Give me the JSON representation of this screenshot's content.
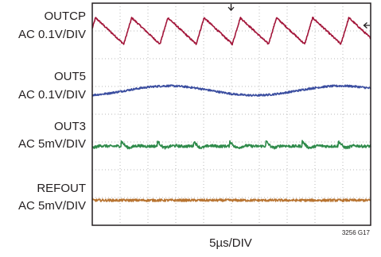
{
  "chart_data": {
    "type": "line",
    "title": "",
    "xlabel": "5µs/DIV",
    "figure_id": "3256 G17",
    "grid": {
      "divisions_x": 10,
      "divisions_y": 8,
      "style": "dotted"
    },
    "time_per_div_us": 5,
    "series": [
      {
        "name": "OUTCP",
        "scale": "AC 0.1V/DIV",
        "color": "#a3163a",
        "shape": "sawtooth",
        "period_div": 1.3,
        "amplitude_div": 0.95,
        "noise_div": 0.03
      },
      {
        "name": "OUT5",
        "scale": "AC 0.1V/DIV",
        "color": "#3b4ea0",
        "shape": "slow-sine",
        "period_div": 6.2,
        "amplitude_div": 0.17,
        "noise_div": 0.035
      },
      {
        "name": "OUT3",
        "scale": "AC 5mV/DIV",
        "color": "#2e8a4a",
        "shape": "ripple",
        "period_div": 1.3,
        "amplitude_div": 0.17,
        "noise_div": 0.05
      },
      {
        "name": "REFOUT",
        "scale": "AC 5mV/DIV",
        "color": "#b87431",
        "shape": "noise",
        "period_div": 0,
        "amplitude_div": 0,
        "noise_div": 0.045
      }
    ]
  }
}
